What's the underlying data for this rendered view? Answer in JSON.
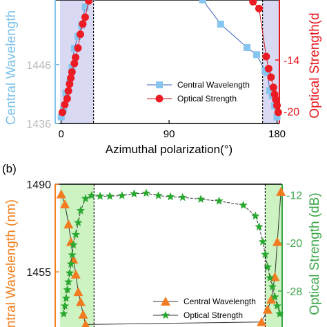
{
  "figure": {
    "panel_b_label": "(b)"
  },
  "chart_data": [
    {
      "panel": "a",
      "type": "scatter",
      "xlabel": "Azimuthal polarization(°)",
      "ylabel_left": "Central Wavelength",
      "ylabel_right": "Optical Strength(d",
      "x_ticks": [
        "0",
        "90",
        "180"
      ],
      "y_left_ticks": [
        "1436",
        "1446"
      ],
      "y_right_ticks": [
        "-14",
        "-20"
      ],
      "xlim": [
        -5,
        182
      ],
      "ylim_left": [
        1436,
        1457
      ],
      "ylim_right": [
        -21.4,
        -7
      ],
      "colors": {
        "left": "#7ec3ea",
        "right": "#e8151b",
        "band": "#d9d9f3",
        "marker_left": "#86c5ef",
        "marker_right": "#ec1c24"
      },
      "bands": [
        [
          -1,
          27
        ],
        [
          168,
          182
        ]
      ],
      "series": [
        {
          "name": "Central Wavelength",
          "axis": "left",
          "marker": "square",
          "x": [
            0,
            2,
            4,
            7,
            9,
            11,
            14,
            17,
            20,
            25,
            118,
            133,
            155,
            163,
            170,
            172,
            174,
            176,
            178,
            180
          ],
          "y": [
            1437.1,
            1438.4,
            1441.2,
            1443.0,
            1445.5,
            1448.8,
            1450.8,
            1452.7,
            1455.8,
            1457.5,
            1457.0,
            1452.9,
            1448.9,
            1447.7,
            1445.0,
            1444.7,
            1441.6,
            1440.7,
            1439.0,
            1437.1
          ]
        },
        {
          "name": "Optical Strength",
          "axis": "right",
          "marker": "circle",
          "x": [
            1,
            3,
            5,
            6,
            7,
            8,
            9,
            11,
            12,
            14,
            16,
            18,
            20,
            23,
            160,
            165,
            171,
            173,
            175,
            177,
            178,
            179,
            180,
            181
          ],
          "y": [
            -20.1,
            -19.2,
            -18.5,
            -17.6,
            -16.8,
            -16.1,
            -15.4,
            -14.4,
            -13.7,
            -12.6,
            -11.0,
            -9.8,
            -9.0,
            -7.1,
            -7.2,
            -8.0,
            -13.6,
            -15.0,
            -16.0,
            -17.2,
            -18.0,
            -18.6,
            -19.3,
            -20.1
          ]
        }
      ],
      "legend": [
        "Central Wavelength",
        "Optical Strength"
      ],
      "legend_position": "lower-right"
    },
    {
      "panel": "b",
      "type": "scatter",
      "ylabel_left": "ntral Wavelength (nm)",
      "ylabel_right": "Optical Strength (dB)",
      "y_left_ticks": [
        "1490",
        "1455"
      ],
      "y_right_ticks": [
        "-12",
        "-20",
        "-28"
      ],
      "xlim": [
        -5,
        182
      ],
      "ylim_left": [
        1433,
        1490
      ],
      "ylim_right": [
        -34,
        -10.2
      ],
      "colors": {
        "left": "#f2801f",
        "right": "#3aa648",
        "band": "#cdf3c3",
        "marker_left": "#f47c20",
        "marker_right": "#28a82e"
      },
      "bands": [
        [
          -1,
          27
        ],
        [
          168,
          182
        ]
      ],
      "series": [
        {
          "name": "Central Wavelength",
          "axis": "left",
          "marker": "triangle",
          "x": [
            0,
            3,
            6,
            8,
            10,
            12,
            14,
            16,
            18,
            20,
            165,
            170,
            173,
            176,
            178,
            181
          ],
          "y": [
            1486,
            1482,
            1474,
            1467,
            1460,
            1454,
            1447,
            1443,
            1438,
            1434,
            1435,
            1440,
            1444,
            1453,
            1467,
            1487
          ]
        },
        {
          "name": "Optical Strength",
          "axis": "right",
          "marker": "star",
          "x": [
            2,
            3,
            4,
            5,
            6,
            7,
            8,
            9,
            10,
            12,
            14,
            16,
            20,
            25,
            32,
            40,
            50,
            60,
            70,
            80,
            90,
            100,
            115,
            130,
            150,
            160,
            163,
            166,
            168,
            170,
            172,
            174,
            176,
            178,
            180
          ],
          "y": [
            -31.8,
            -30.5,
            -29.2,
            -27.8,
            -26.5,
            -25.0,
            -23.5,
            -22.0,
            -20.3,
            -18.6,
            -16.6,
            -14.6,
            -12.6,
            -12.1,
            -12.2,
            -12.2,
            -12.1,
            -11.8,
            -11.7,
            -12.1,
            -12.3,
            -12.4,
            -12.7,
            -13.0,
            -13.7,
            -15.5,
            -17.3,
            -19.8,
            -21.9,
            -24.0,
            -25.8,
            -27.3,
            -29.0,
            -30.5,
            -31.8
          ]
        }
      ],
      "legend": [
        "Central Wavelength",
        "Optical Strength"
      ],
      "legend_position": "lower-right"
    }
  ]
}
